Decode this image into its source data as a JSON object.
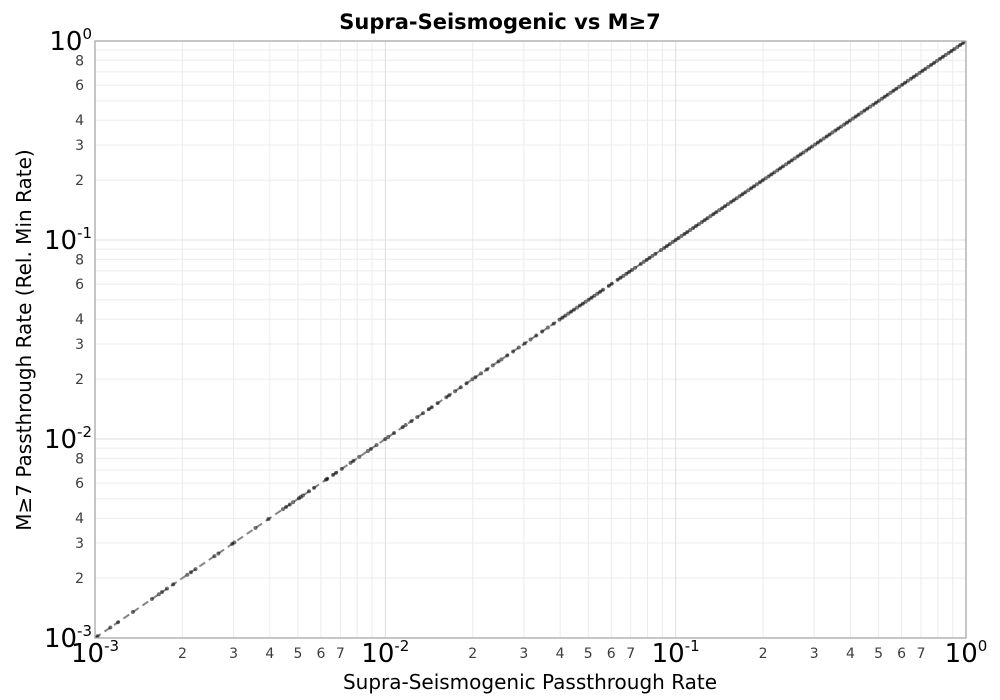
{
  "chart_data": {
    "type": "scatter",
    "title": "Supra-Seismogenic vs M≥7",
    "xlabel": "Supra-Seismogenic Passthrough Rate",
    "ylabel": "M≥7 Passthrough Rate (Rel. Min Rate)",
    "xscale": "log",
    "yscale": "log",
    "xlim": [
      0.001,
      1.0
    ],
    "ylim": [
      0.001,
      1.0
    ],
    "grid": true,
    "legend": "none",
    "x_tick_decade_exponents": [
      "-3",
      "-2",
      "-1",
      "0"
    ],
    "x_minor_tick_labels": [
      2,
      3,
      4,
      5,
      6,
      7
    ],
    "y_tick_decade_exponents": [
      "0",
      "-1",
      "-2",
      "-3"
    ],
    "y_minor_tick_labels": [
      8,
      6,
      4,
      3,
      2
    ],
    "colors": {
      "background": "#ffffff",
      "plot_border": "#a8a8a8",
      "grid_minor": "#ececec",
      "grid_major": "#dedede",
      "marker": "#000000",
      "marker_opacity": 0.55,
      "line": "#868686",
      "tick_minor_label": "#3c3c3c",
      "tick_decade_label": "#000000"
    },
    "series": [
      {
        "name": "passthrough-rate-points",
        "marker": "circle",
        "marker_color": "#000000",
        "marker_opacity": 0.55,
        "line_style": "dashed",
        "line_color": "#868686",
        "relationship": "y = x (all points lie on the 1:1 diagonal)",
        "x": [
          0.001,
          0.00102,
          0.00113,
          0.0012,
          0.00135,
          0.00157,
          0.00166,
          0.0017,
          0.00177,
          0.00186,
          0.00208,
          0.00214,
          0.00222,
          0.00258,
          0.00266,
          0.00297,
          0.00302,
          0.00357,
          0.00396,
          0.00444,
          0.00455,
          0.00469,
          0.00481,
          0.00504,
          0.00512,
          0.0052,
          0.00546,
          0.00568,
          0.00625,
          0.00631,
          0.006607,
          0.006761,
          0.007079,
          0.007586,
          0.007762,
          0.008128,
          0.00871,
          0.008913,
          0.009333,
          0.01,
          0.01023,
          0.01072,
          0.01148,
          0.01175,
          0.0123,
          0.01288,
          0.01349,
          0.01413,
          0.01445,
          0.01514,
          0.01622,
          0.0166,
          0.01738,
          0.0182,
          0.01905,
          0.01995,
          0.02042,
          0.02138,
          0.02239,
          0.02344,
          0.02455,
          0.02512,
          0.0263,
          0.02754,
          0.02884,
          0.0302,
          0.03162,
          0.03311,
          0.03467,
          0.03631,
          0.03802,
          0.03981,
          0.04074,
          0.04169,
          0.04266,
          0.04365,
          0.04467,
          0.04571,
          0.04677,
          0.04786,
          0.04898,
          0.05012,
          0.05129,
          0.05248,
          0.0537,
          0.05495,
          0.05623,
          0.05888,
          0.06026,
          0.0631,
          0.06457,
          0.06607,
          0.06761,
          0.06918,
          0.07079,
          0.07244,
          0.07586,
          0.07762,
          0.07943,
          0.08128,
          0.08318,
          0.08511,
          0.08913,
          0.0912,
          0.09333,
          0.0955,
          0.09772,
          0.1,
          0.1023,
          0.1047,
          0.1072,
          0.1096,
          0.1122,
          0.1148,
          0.1175,
          0.1202,
          0.123,
          0.1259,
          0.1288,
          0.1318,
          0.1349,
          0.138,
          0.1413,
          0.1445,
          0.1479,
          0.1514,
          0.1549,
          0.1585,
          0.1622,
          0.166,
          0.1698,
          0.1738,
          0.1778,
          0.182,
          0.1862,
          0.1905,
          0.195,
          0.1995,
          0.2042,
          0.2089,
          0.2138,
          0.2188,
          0.2239,
          0.2291,
          0.2344,
          0.2399,
          0.2455,
          0.2512,
          0.257,
          0.263,
          0.2692,
          0.2754,
          0.2818,
          0.2884,
          0.2951,
          0.302,
          0.309,
          0.3162,
          0.3236,
          0.3311,
          0.3388,
          0.3467,
          0.3548,
          0.3631,
          0.3715,
          0.3802,
          0.389,
          0.3981,
          0.4074,
          0.4169,
          0.4266,
          0.4365,
          0.4467,
          0.4571,
          0.4677,
          0.4786,
          0.4898,
          0.5012,
          0.5129,
          0.5248,
          0.537,
          0.5495,
          0.5623,
          0.5754,
          0.5888,
          0.6026,
          0.6166,
          0.631,
          0.6457,
          0.6607,
          0.6761,
          0.6918,
          0.7079,
          0.7244,
          0.7413,
          0.7586,
          0.7762,
          0.7943,
          0.8128,
          0.8318,
          0.8511,
          0.871,
          0.8913,
          0.912,
          0.9333,
          0.955,
          0.9772,
          1.0
        ],
        "y": [
          0.001,
          0.00102,
          0.00113,
          0.0012,
          0.00135,
          0.00157,
          0.00166,
          0.0017,
          0.00177,
          0.00186,
          0.00208,
          0.00214,
          0.00222,
          0.00258,
          0.00266,
          0.00297,
          0.00302,
          0.00357,
          0.00396,
          0.00444,
          0.00455,
          0.00469,
          0.00481,
          0.00504,
          0.00512,
          0.0052,
          0.00546,
          0.00568,
          0.00625,
          0.00631,
          0.006607,
          0.006761,
          0.007079,
          0.007586,
          0.007762,
          0.008128,
          0.00871,
          0.008913,
          0.009333,
          0.01,
          0.01023,
          0.01072,
          0.01148,
          0.01175,
          0.0123,
          0.01288,
          0.01349,
          0.01413,
          0.01445,
          0.01514,
          0.01622,
          0.0166,
          0.01738,
          0.0182,
          0.01905,
          0.01995,
          0.02042,
          0.02138,
          0.02239,
          0.02344,
          0.02455,
          0.02512,
          0.0263,
          0.02754,
          0.02884,
          0.0302,
          0.03162,
          0.03311,
          0.03467,
          0.03631,
          0.03802,
          0.03981,
          0.04074,
          0.04169,
          0.04266,
          0.04365,
          0.04467,
          0.04571,
          0.04677,
          0.04786,
          0.04898,
          0.05012,
          0.05129,
          0.05248,
          0.0537,
          0.05495,
          0.05623,
          0.05888,
          0.06026,
          0.0631,
          0.06457,
          0.06607,
          0.06761,
          0.06918,
          0.07079,
          0.07244,
          0.07586,
          0.07762,
          0.07943,
          0.08128,
          0.08318,
          0.08511,
          0.08913,
          0.0912,
          0.09333,
          0.0955,
          0.09772,
          0.1,
          0.1023,
          0.1047,
          0.1072,
          0.1096,
          0.1122,
          0.1148,
          0.1175,
          0.1202,
          0.123,
          0.1259,
          0.1288,
          0.1318,
          0.1349,
          0.138,
          0.1413,
          0.1445,
          0.1479,
          0.1514,
          0.1549,
          0.1585,
          0.1622,
          0.166,
          0.1698,
          0.1738,
          0.1778,
          0.182,
          0.1862,
          0.1905,
          0.195,
          0.1995,
          0.2042,
          0.2089,
          0.2138,
          0.2188,
          0.2239,
          0.2291,
          0.2344,
          0.2399,
          0.2455,
          0.2512,
          0.257,
          0.263,
          0.2692,
          0.2754,
          0.2818,
          0.2884,
          0.2951,
          0.302,
          0.309,
          0.3162,
          0.3236,
          0.3311,
          0.3388,
          0.3467,
          0.3548,
          0.3631,
          0.3715,
          0.3802,
          0.389,
          0.3981,
          0.4074,
          0.4169,
          0.4266,
          0.4365,
          0.4467,
          0.4571,
          0.4677,
          0.4786,
          0.4898,
          0.5012,
          0.5129,
          0.5248,
          0.537,
          0.5495,
          0.5623,
          0.5754,
          0.5888,
          0.6026,
          0.6166,
          0.631,
          0.6457,
          0.6607,
          0.6761,
          0.6918,
          0.7079,
          0.7244,
          0.7413,
          0.7586,
          0.7762,
          0.7943,
          0.8128,
          0.8318,
          0.8511,
          0.871,
          0.8913,
          0.912,
          0.9333,
          0.955,
          0.9772,
          1.0
        ]
      }
    ]
  }
}
